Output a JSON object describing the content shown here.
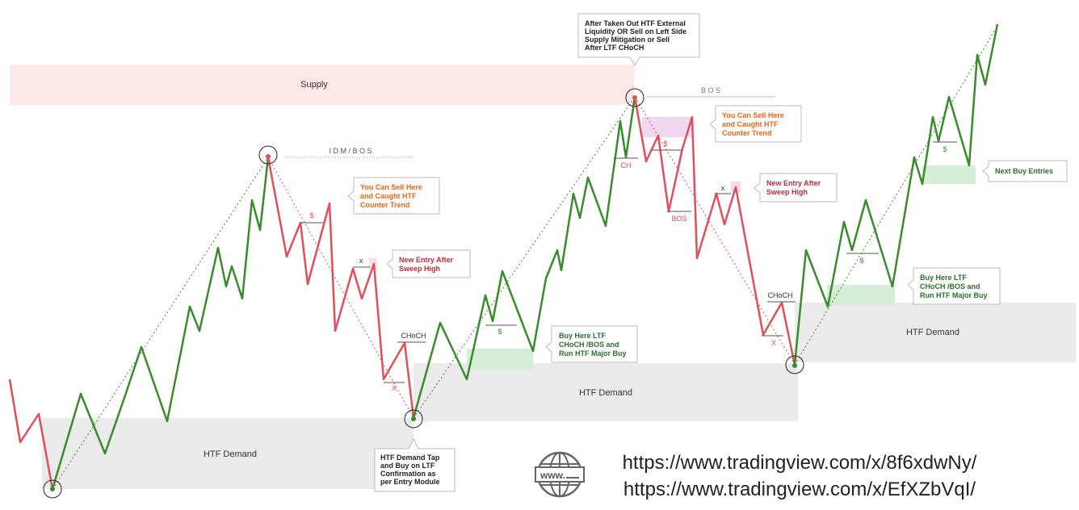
{
  "zones": {
    "supply": "Supply",
    "demand_1": "HTF  Demand",
    "demand_2": "HTF Demand",
    "demand_3": "HTF  Demand"
  },
  "markers": {
    "idm_bos": "I D M / B O S",
    "bos_top": "B O S",
    "dollar": "$",
    "x": "x",
    "x_red": "X",
    "choch": "CHoCH",
    "ch": "CH",
    "bos_red": "BOS"
  },
  "callouts": {
    "sell_1": [
      "You Can  Sell Here",
      "and Caught HTF",
      "Counter Trend"
    ],
    "entry_1": [
      "New Entry After",
      "Sweep High"
    ],
    "buy_1": [
      "Buy Here LTF",
      "CHoCH /BOS and",
      "Run HTF  Major Buy"
    ],
    "tap": [
      "HTF Demand Tap",
      "and Buy on LTF",
      "Confirmation as",
      "per Entry Module"
    ],
    "top": [
      "After Taken Out HTF External",
      "Liquidity OR Sell on Left Side",
      "Supply Mitigation or Sell",
      "After LTF CHoCH"
    ],
    "sell_2": [
      "You Can  Sell Here",
      "and Caught HTF",
      "Counter Trend"
    ],
    "entry_2": [
      "New Entry After",
      "Sweep High"
    ],
    "buy_2": [
      "Buy Here LTF",
      "CHoCH /BOS and",
      "Run HTF  Major Buy"
    ],
    "next_buy": [
      "Next Buy Entries"
    ]
  },
  "urls": [
    "https://www.tradingview.com/x/8f6xdwNy/",
    "https://www.tradingview.com/x/EfXZbVqI/"
  ],
  "globe_icon_text": "www.",
  "colors": {
    "bull": "#3a8a2e",
    "bear": "#e0505a",
    "supply": "#fde8e8",
    "demand": "#ebebeb",
    "buy_zone": "#d6edd8",
    "sell_zone": "#f0d8f2",
    "sell_text": "#e8661a",
    "entry_text": "#b5303a",
    "buy_text": "#2f6e2f"
  }
}
